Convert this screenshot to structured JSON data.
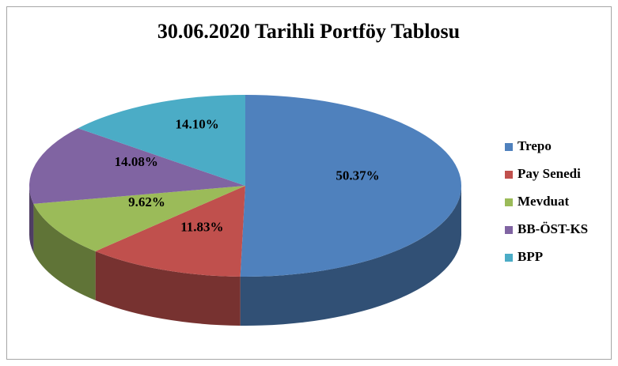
{
  "chart_data": {
    "type": "pie",
    "title": "30.06.2020 Tarihli  Portföy  Tablosu",
    "categories": [
      "Trepo",
      "Pay Senedi",
      "Mevduat",
      "BB-ÖST-KS",
      "BPP"
    ],
    "values": [
      50.37,
      11.83,
      9.62,
      14.08,
      14.1
    ],
    "value_labels": [
      "50.37%",
      "11.83%",
      "9.62%",
      "14.08%",
      "14.10%"
    ],
    "colors": [
      "#4f81bd",
      "#c0504d",
      "#9bbb59",
      "#8064a2",
      "#4bacc6"
    ],
    "legend": "right"
  }
}
